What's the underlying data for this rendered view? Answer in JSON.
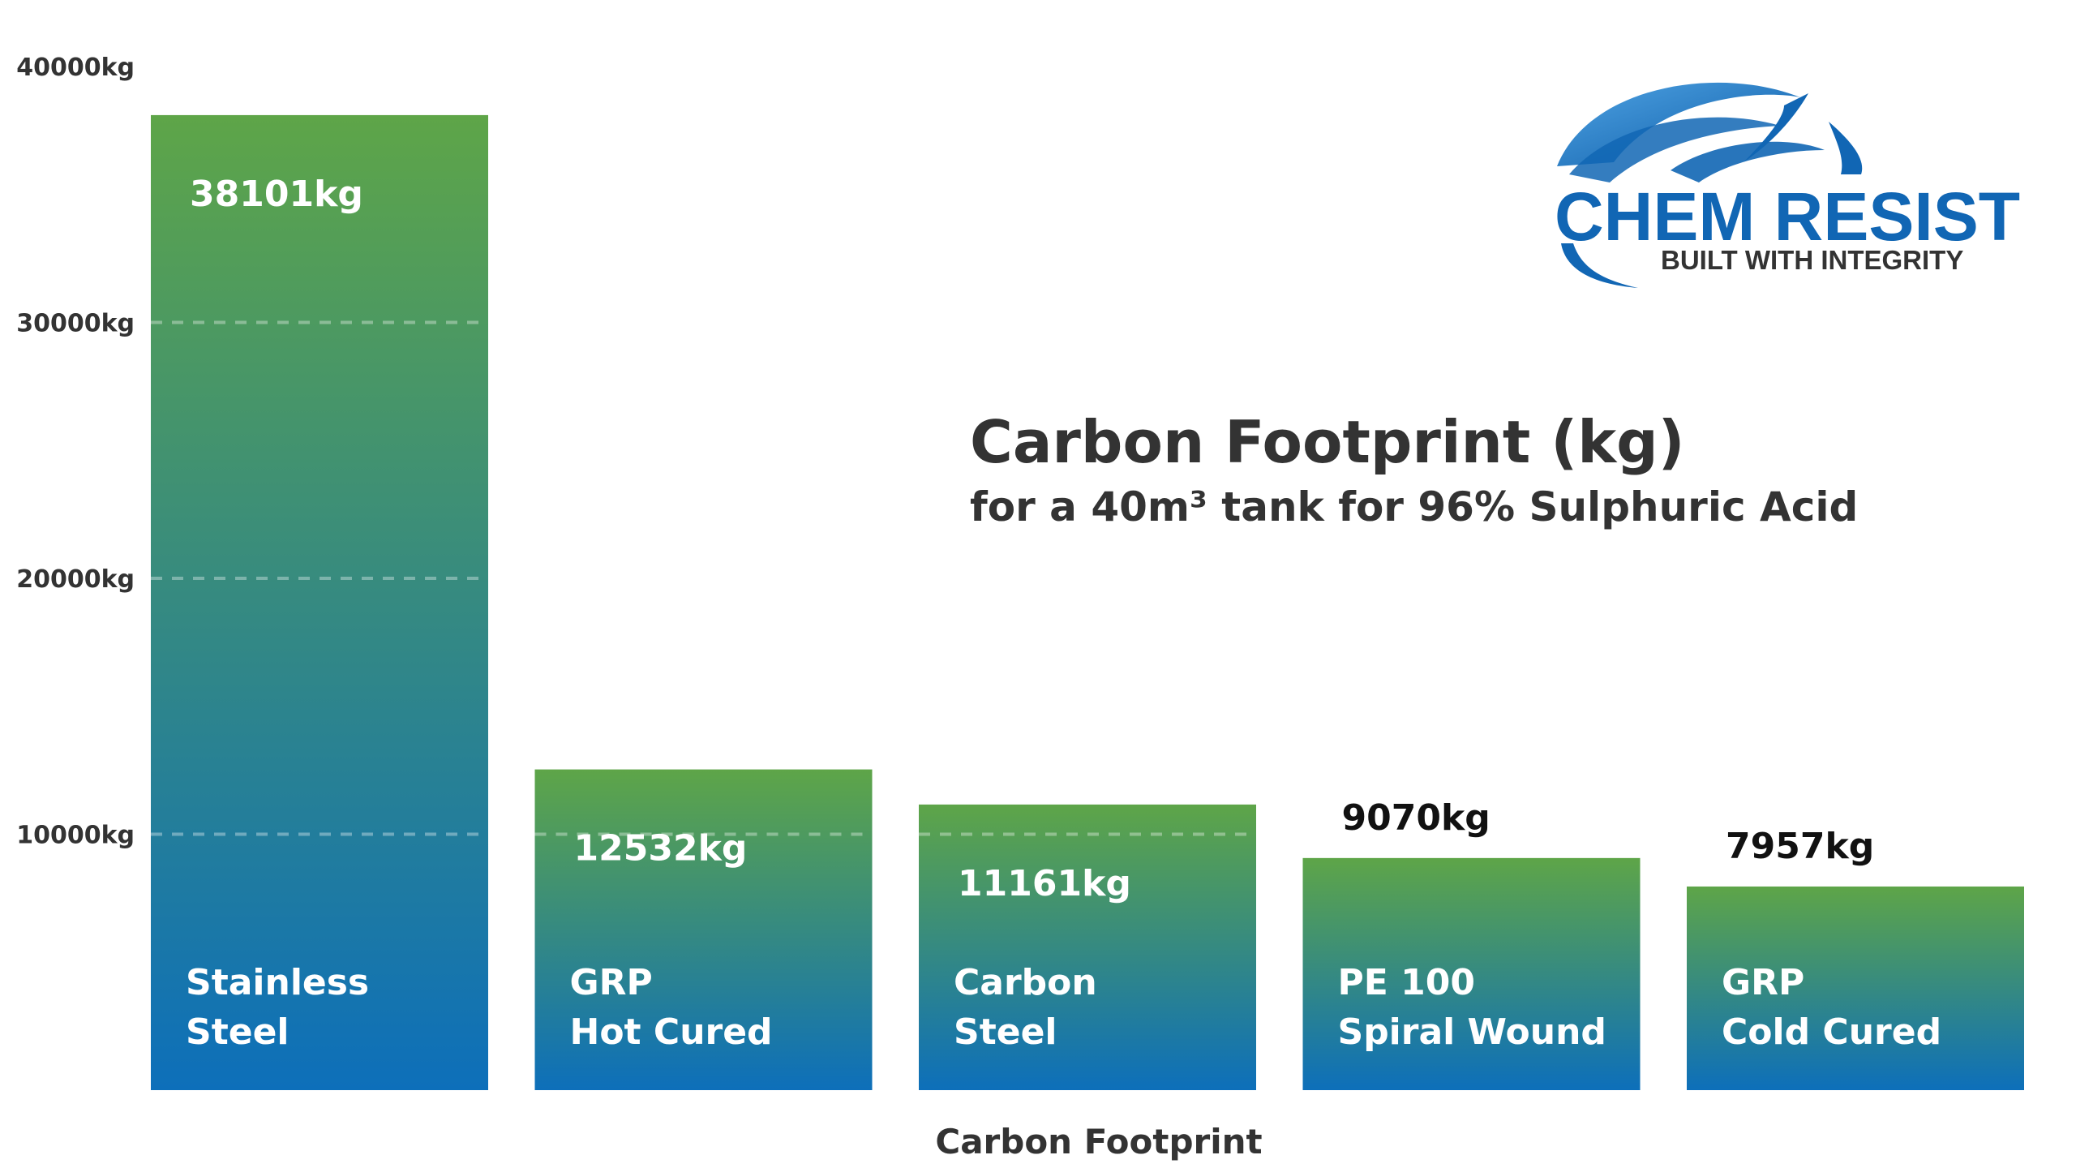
{
  "chart_data": {
    "type": "bar",
    "title": "Carbon Footprint (kg)",
    "subtitle": "for a 40m³ tank for 96% Sulphuric Acid",
    "xlabel": "Carbon Footprint",
    "ylabel": "",
    "ylim": [
      0,
      40000
    ],
    "yticks": [
      {
        "value": 10000,
        "label": "10000kg"
      },
      {
        "value": 20000,
        "label": "20000kg"
      },
      {
        "value": 30000,
        "label": "30000kg"
      },
      {
        "value": 40000,
        "label": "40000kg"
      }
    ],
    "grid": "dashed horizontal",
    "categories": [
      {
        "line1": "Stainless",
        "line2": "Steel"
      },
      {
        "line1": "GRP",
        "line2": "Hot Cured"
      },
      {
        "line1": "Carbon",
        "line2": "Steel"
      },
      {
        "line1": "PE 100",
        "line2": "Spiral Wound"
      },
      {
        "line1": "GRP",
        "line2": "Cold Cured"
      }
    ],
    "values": [
      38101,
      12532,
      11161,
      9070,
      7957
    ],
    "value_labels": [
      "38101kg",
      "12532kg",
      "11161kg",
      "9070kg",
      "7957kg"
    ],
    "colors": {
      "gradient_top": "#5ea548",
      "gradient_bottom": "#0d6fba",
      "text": "#333333",
      "label_on_bar": "#ffffff",
      "label_above_bar": "#111111"
    }
  },
  "logo": {
    "name": "CHEM RESIST",
    "tagline": "BUILT WITH INTEGRITY",
    "colors": {
      "primary": "#1166b4",
      "tagline": "#333333"
    }
  }
}
